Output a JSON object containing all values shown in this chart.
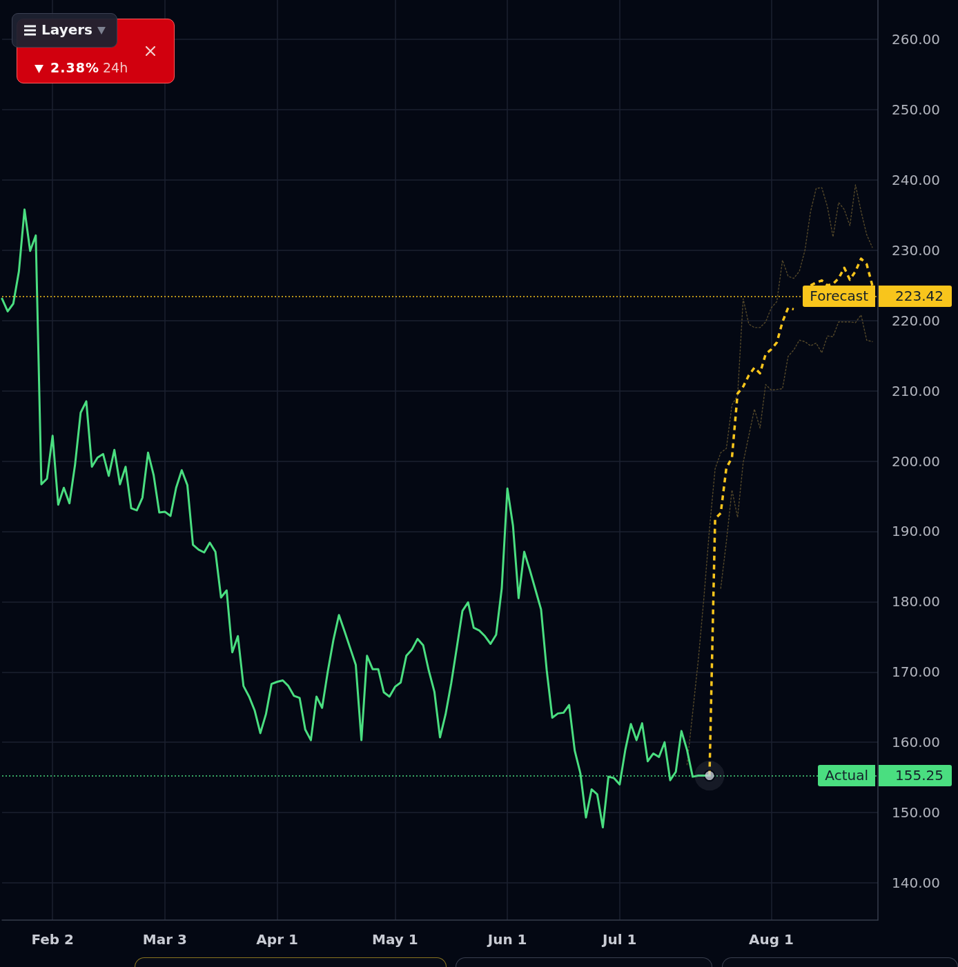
{
  "chart_data": {
    "type": "line",
    "categories": [
      null,
      null,
      null,
      null,
      null,
      null,
      null,
      null,
      null,
      "Feb 2",
      null,
      null,
      null,
      null,
      null,
      null,
      null,
      null,
      null,
      null,
      null,
      null,
      null,
      null,
      null,
      null,
      null,
      null,
      null,
      "Mar 3",
      null,
      null,
      null,
      null,
      null,
      null,
      null,
      null,
      null,
      null,
      null,
      null,
      null,
      null,
      null,
      null,
      null,
      null,
      null,
      "Apr 1",
      null,
      null,
      null,
      null,
      null,
      null,
      null,
      null,
      null,
      null,
      null,
      null,
      null,
      null,
      null,
      null,
      null,
      null,
      null,
      null,
      "May 1",
      null,
      null,
      null,
      null,
      null,
      null,
      null,
      null,
      null,
      null,
      null,
      null,
      null,
      null,
      null,
      null,
      null,
      null,
      null,
      "Jun 1",
      null,
      null,
      null,
      null,
      null,
      null,
      null,
      null,
      null,
      null,
      null,
      null,
      null,
      null,
      null,
      null,
      null,
      null,
      null,
      "Jul 1",
      null,
      null,
      null,
      null,
      null,
      null,
      null,
      null,
      null,
      null,
      null,
      null,
      null,
      null,
      null,
      null,
      null,
      null,
      null,
      null,
      null,
      null,
      null,
      null,
      null,
      null,
      "Aug 1",
      null,
      null,
      null,
      null,
      null,
      null,
      null,
      null,
      null,
      null,
      null,
      null,
      null,
      null,
      null,
      null,
      null,
      null,
      null
    ],
    "series": [
      {
        "color": "#4ade80",
        "values": [
          223.1,
          221.3,
          222.4,
          227.0,
          235.8,
          229.9,
          232.1,
          196.7,
          197.5,
          203.6,
          193.8,
          196.2,
          194.0,
          199.5,
          206.9,
          208.5,
          199.2,
          200.5,
          201.0,
          197.9,
          201.6,
          196.7,
          199.2,
          193.3,
          193.0,
          194.8,
          201.2,
          198.0,
          192.7,
          192.8,
          192.2,
          196.2,
          198.7,
          196.6,
          188.1,
          187.4,
          187.0,
          188.4,
          187.1,
          180.6,
          181.6,
          172.8,
          175.1,
          168.0,
          166.5,
          164.5,
          161.3,
          164.0,
          168.3,
          168.6,
          168.8,
          168.0,
          166.6,
          166.3,
          161.8,
          160.3,
          166.5,
          164.9,
          170.0,
          174.5,
          178.1,
          175.8,
          173.4,
          171.0,
          160.3,
          172.3,
          170.4,
          170.4,
          167.1,
          166.5,
          167.9,
          168.5,
          172.3,
          173.2,
          174.7,
          173.8,
          170.2,
          167.2,
          160.7,
          164.0,
          168.4,
          173.5,
          178.7,
          179.9,
          176.3,
          175.9,
          175.1,
          174.0,
          175.3,
          181.9,
          196.1,
          190.8,
          180.5,
          187.1,
          184.5,
          181.7,
          178.9,
          170.3,
          163.5,
          164.1,
          164.2,
          165.3,
          158.8,
          155.6,
          149.3,
          153.3,
          152.6,
          147.9,
          155.1,
          154.9,
          154.0,
          158.9,
          162.6,
          160.3,
          162.7,
          157.3,
          158.4,
          157.9,
          160.0,
          154.6,
          155.8,
          161.6,
          158.9,
          155.1,
          155.25,
          155.25,
          155.25,
          null,
          null,
          null,
          null,
          null,
          null,
          null,
          null,
          null,
          null,
          null,
          null,
          null,
          null,
          null,
          null,
          null,
          null,
          null,
          null,
          null,
          null,
          null,
          null,
          null,
          null,
          null,
          null,
          null,
          null
        ]
      },
      {
        "color": "#f8c51c",
        "line_style": "dashed",
        "values": [
          null,
          null,
          null,
          null,
          null,
          null,
          null,
          null,
          null,
          null,
          null,
          null,
          null,
          null,
          null,
          null,
          null,
          null,
          null,
          null,
          null,
          null,
          null,
          null,
          null,
          null,
          null,
          null,
          null,
          null,
          null,
          null,
          null,
          null,
          null,
          null,
          null,
          null,
          null,
          null,
          null,
          null,
          null,
          null,
          null,
          null,
          null,
          null,
          null,
          null,
          null,
          null,
          null,
          null,
          null,
          null,
          null,
          null,
          null,
          null,
          null,
          null,
          null,
          null,
          null,
          null,
          null,
          null,
          null,
          null,
          null,
          null,
          null,
          null,
          null,
          null,
          null,
          null,
          null,
          null,
          null,
          null,
          null,
          null,
          null,
          null,
          null,
          null,
          null,
          null,
          null,
          null,
          null,
          null,
          null,
          null,
          null,
          null,
          null,
          null,
          null,
          null,
          null,
          null,
          null,
          null,
          null,
          null,
          null,
          null,
          null,
          null,
          null,
          null,
          null,
          null,
          null,
          null,
          null,
          null,
          null,
          null,
          null,
          null,
          null,
          null,
          155.25,
          191.8,
          192.6,
          199.0,
          200.5,
          209.6,
          210.6,
          212.2,
          213.3,
          212.5,
          215.2,
          215.9,
          216.9,
          219.8,
          221.8,
          221.6,
          null,
          null,
          225.0,
          225.4,
          225.7,
          225.0,
          225.2,
          226.0,
          227.5,
          225.8,
          227.0,
          228.8,
          228.0,
          225.0,
          null
        ]
      },
      {
        "color": "#55492a",
        "line_style": "dotted",
        "values": [
          null,
          null,
          null,
          null,
          null,
          null,
          null,
          null,
          null,
          null,
          null,
          null,
          null,
          null,
          null,
          null,
          null,
          null,
          null,
          null,
          null,
          null,
          null,
          null,
          null,
          null,
          null,
          null,
          null,
          null,
          null,
          null,
          null,
          null,
          null,
          null,
          null,
          null,
          null,
          null,
          null,
          null,
          null,
          null,
          null,
          null,
          null,
          null,
          null,
          null,
          null,
          null,
          null,
          null,
          null,
          null,
          null,
          null,
          null,
          null,
          null,
          null,
          null,
          null,
          null,
          null,
          null,
          null,
          null,
          null,
          null,
          null,
          null,
          null,
          null,
          null,
          null,
          null,
          null,
          null,
          null,
          null,
          null,
          null,
          null,
          null,
          null,
          null,
          null,
          null,
          null,
          null,
          null,
          null,
          null,
          null,
          null,
          null,
          null,
          null,
          null,
          null,
          null,
          null,
          null,
          null,
          null,
          null,
          null,
          null,
          null,
          null,
          null,
          null,
          null,
          null,
          null,
          null,
          null,
          null,
          null,
          null,
          156.8,
          164.2,
          171.7,
          180.5,
          190.4,
          198.9,
          201.2,
          201.8,
          208.0,
          209.3,
          223.1,
          219.5,
          219.0,
          219.0,
          219.8,
          221.8,
          222.7,
          228.6,
          226.3,
          226.0,
          227.0,
          230.0,
          235.5,
          238.8,
          238.9,
          236.2,
          231.9,
          236.8,
          235.8,
          233.5,
          239.3,
          235.5,
          232.2,
          230.4,
          null
        ]
      },
      {
        "color": "#55492a",
        "line_style": "dotted",
        "values": [
          null,
          null,
          null,
          null,
          null,
          null,
          null,
          null,
          null,
          null,
          null,
          null,
          null,
          null,
          null,
          null,
          null,
          null,
          null,
          null,
          null,
          null,
          null,
          null,
          null,
          null,
          null,
          null,
          null,
          null,
          null,
          null,
          null,
          null,
          null,
          null,
          null,
          null,
          null,
          null,
          null,
          null,
          null,
          null,
          null,
          null,
          null,
          null,
          null,
          null,
          null,
          null,
          null,
          null,
          null,
          null,
          null,
          null,
          null,
          null,
          null,
          null,
          null,
          null,
          null,
          null,
          null,
          null,
          null,
          null,
          null,
          null,
          null,
          null,
          null,
          null,
          null,
          null,
          null,
          null,
          null,
          null,
          null,
          null,
          null,
          null,
          null,
          null,
          null,
          null,
          null,
          null,
          null,
          null,
          null,
          null,
          null,
          null,
          null,
          null,
          null,
          null,
          null,
          null,
          null,
          null,
          null,
          null,
          null,
          null,
          null,
          null,
          null,
          null,
          null,
          null,
          null,
          null,
          null,
          null,
          null,
          null,
          null,
          null,
          null,
          null,
          null,
          null,
          181.9,
          188.5,
          195.9,
          192.0,
          199.8,
          203.6,
          207.4,
          204.7,
          210.9,
          210.1,
          210.2,
          210.3,
          214.9,
          215.8,
          217.2,
          217.0,
          216.4,
          216.8,
          215.4,
          217.8,
          217.7,
          219.8,
          219.8,
          219.8,
          219.7,
          220.8,
          217.2,
          217.0,
          null
        ]
      },
      {
        "type": "scatter",
        "color": "#c8ccd6",
        "marker": "circle",
        "values": [
          null,
          null,
          null,
          null,
          null,
          null,
          null,
          null,
          null,
          null,
          null,
          null,
          null,
          null,
          null,
          null,
          null,
          null,
          null,
          null,
          null,
          null,
          null,
          null,
          null,
          null,
          null,
          null,
          null,
          null,
          null,
          null,
          null,
          null,
          null,
          null,
          null,
          null,
          null,
          null,
          null,
          null,
          null,
          null,
          null,
          null,
          null,
          null,
          null,
          null,
          null,
          null,
          null,
          null,
          null,
          null,
          null,
          null,
          null,
          null,
          null,
          null,
          null,
          null,
          null,
          null,
          null,
          null,
          null,
          null,
          null,
          null,
          null,
          null,
          null,
          null,
          null,
          null,
          null,
          null,
          null,
          null,
          null,
          null,
          null,
          null,
          null,
          null,
          null,
          null,
          null,
          null,
          null,
          null,
          null,
          null,
          null,
          null,
          null,
          null,
          null,
          null,
          null,
          null,
          null,
          null,
          null,
          null,
          null,
          null,
          null,
          null,
          null,
          null,
          null,
          null,
          null,
          null,
          null,
          null,
          null,
          null,
          null,
          null,
          null,
          null,
          155.25,
          null,
          null,
          null,
          null,
          null,
          null,
          null,
          null,
          null,
          null,
          null,
          null,
          null,
          null,
          null,
          null,
          null,
          null,
          null,
          null,
          null,
          null,
          null,
          null,
          null,
          null,
          null,
          null,
          null,
          null
        ]
      }
    ],
    "ylim": [
      134.7,
      265.6
    ],
    "yticks": [
      {
        "value": 140,
        "label": "140.00"
      },
      {
        "value": 150,
        "label": "150.00"
      },
      {
        "value": 160,
        "label": "160.00"
      },
      {
        "value": 170,
        "label": "170.00"
      },
      {
        "value": 180,
        "label": "180.00"
      },
      {
        "value": 190,
        "label": "190.00"
      },
      {
        "value": 200,
        "label": "200.00"
      },
      {
        "value": 210,
        "label": "210.00"
      },
      {
        "value": 220,
        "label": "220.00"
      },
      {
        "value": 230,
        "label": "230.00"
      },
      {
        "value": 240,
        "label": "240.00"
      },
      {
        "value": 250,
        "label": "250.00"
      },
      {
        "value": 260,
        "label": "260.00"
      }
    ],
    "grid": true,
    "marker": "none",
    "line_style": "solid",
    "ref_lines": [
      {
        "axis": "y",
        "value": 223.42,
        "label": "Forecast",
        "color": "#f8c51c",
        "line_style": "dotted"
      },
      {
        "axis": "y",
        "value": 155.25,
        "label": "Actual",
        "color": "#4ade80",
        "line_style": "dotted"
      }
    ],
    "annotations": [
      "Layers",
      "2.38%",
      "24h",
      "223.42",
      "155.25"
    ]
  }
}
